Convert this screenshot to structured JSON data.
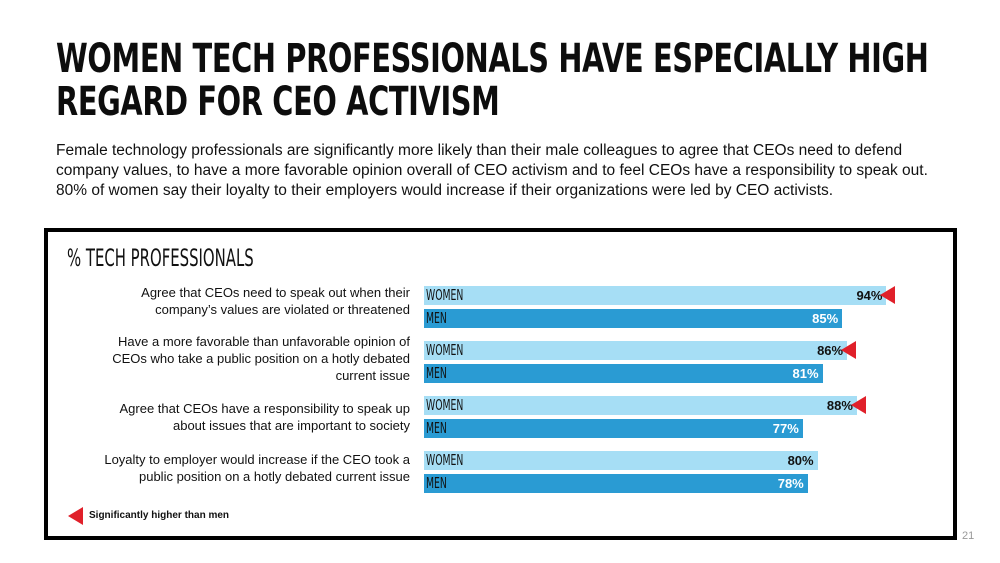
{
  "slide": {
    "title_line1": "WOMEN TECH PROFESSIONALS HAVE ESPECIALLY HIGH",
    "title_line2": "REGARD FOR CEO ACTIVISM",
    "subtitle": "Female technology professionals are significantly more likely than their male colleagues to agree that CEOs need to defend company values, to have a more favorable opinion overall of CEO activism and to feel CEOs have a responsibility to speak out. 80% of women say their loyalty to their employers would increase if their organizations were led by CEO activists.",
    "page_number": "21"
  },
  "chart_data": {
    "type": "bar",
    "orientation": "horizontal",
    "title": "% TECH PROFESSIONALS",
    "value_suffix": "%",
    "categories": [
      "Agree that CEOs need to speak out when their company’s values are violated or threatened",
      "Have a more favorable than unfavorable opinion of CEOs who take a public position on a hotly debated current issue",
      "Agree that CEOs have a responsibility to speak up about issues that are important to society",
      "Loyalty to employer would increase if the CEO took a public position on a hotly debated current issue"
    ],
    "series": [
      {
        "name": "WOMEN",
        "color": "#a6def5",
        "values": [
          94,
          86,
          88,
          80
        ]
      },
      {
        "name": "MEN",
        "color": "#2a9bd3",
        "values": [
          85,
          81,
          77,
          78
        ]
      }
    ],
    "significant_women": [
      true,
      true,
      true,
      false
    ],
    "marker_color": "#e0202a",
    "legend": "Significantly higher than men",
    "xlim": [
      0,
      100
    ]
  }
}
